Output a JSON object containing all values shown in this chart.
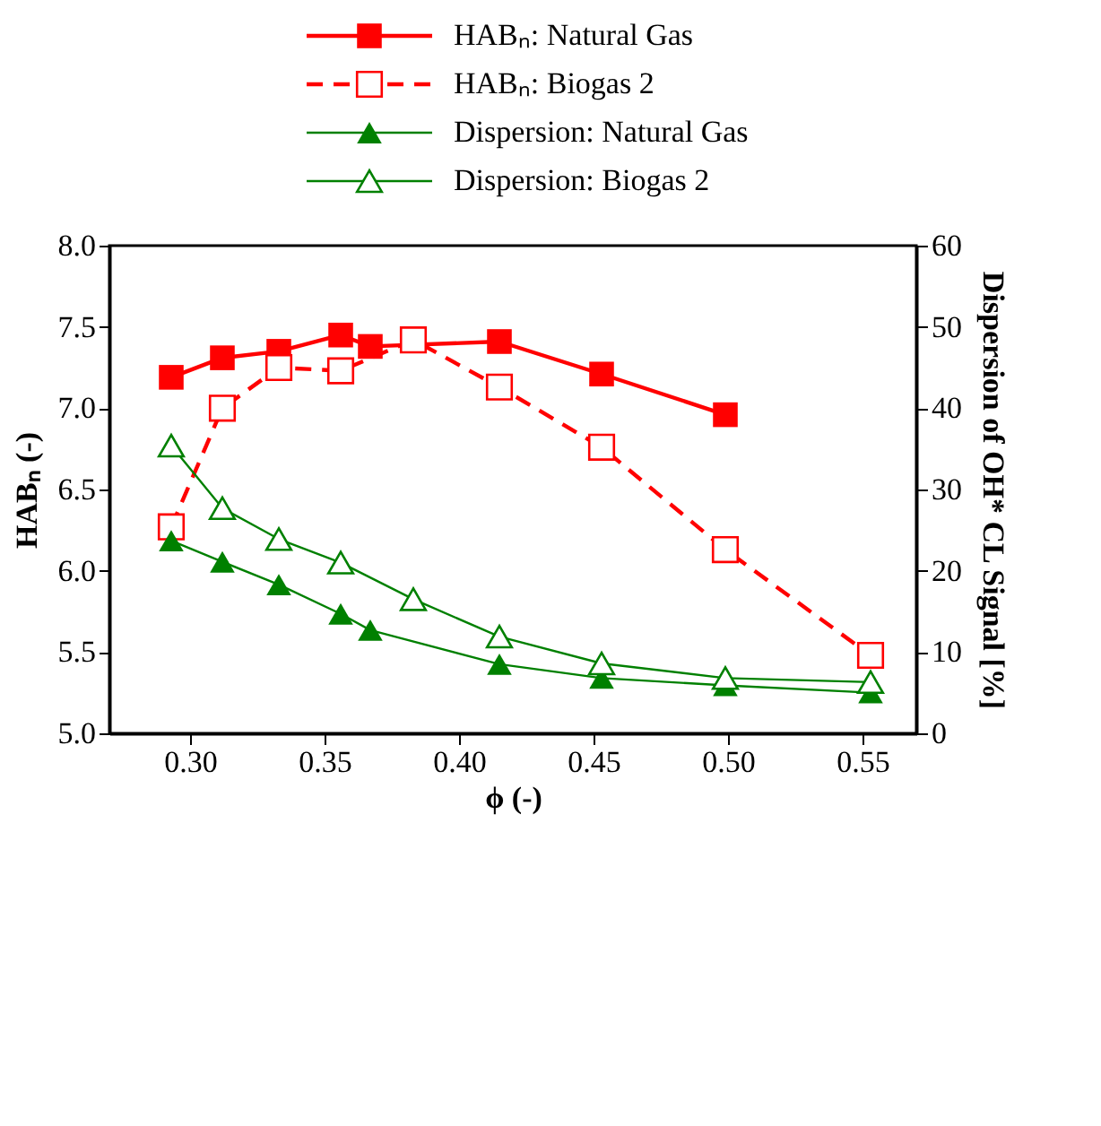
{
  "chart_data": {
    "type": "line",
    "xlabel": "ϕ (-)",
    "ylabel": "HABₙ (-)",
    "y2label": "Dispersion of OH* CL Signal [%]",
    "xlim": [
      0.27,
      0.57
    ],
    "xticks": [
      {
        "value": 0.3,
        "label": "0.30"
      },
      0.35,
      {
        "value": 0.4,
        "label": "0.40"
      },
      0.45,
      {
        "value": 0.5,
        "label": "0.50"
      },
      0.55
    ],
    "ylim": [
      5.0,
      8.0
    ],
    "yticks": [
      {
        "value": 5,
        "label": "5.0"
      },
      5.5,
      {
        "value": 6,
        "label": "6.0"
      },
      6.5,
      {
        "value": 7,
        "label": "7.0"
      },
      7.5,
      {
        "value": 8,
        "label": "8.0"
      }
    ],
    "y2lim": [
      0,
      60
    ],
    "y2ticks": [
      0,
      10,
      20,
      30,
      40,
      50,
      60
    ],
    "grid": false,
    "legend": "top",
    "series": [
      {
        "name": "HABₙ: Natural Gas",
        "color": "#ff0000",
        "marker": "square",
        "line_style": "solid",
        "x": [
          0.293,
          0.312,
          0.333,
          0.356,
          0.367,
          0.415,
          0.453,
          0.499
        ],
        "values": [
          7.19,
          7.31,
          7.35,
          7.45,
          7.38,
          7.41,
          7.21,
          6.96
        ]
      },
      {
        "name": "HABₙ: Biogas 2",
        "color": "#ff0000",
        "marker": "square",
        "line_style": "dashed",
        "x": [
          0.293,
          0.312,
          0.333,
          0.356,
          0.383,
          0.415,
          0.453,
          0.499,
          0.553
        ],
        "values": [
          6.27,
          7.0,
          7.25,
          7.23,
          7.42,
          7.13,
          6.76,
          6.13,
          5.48
        ]
      },
      {
        "name": "Dispersion: Natural Gas",
        "color": "#008000",
        "marker": "triangle",
        "line_style": "solid",
        "axis": "y2",
        "x": [
          0.293,
          0.312,
          0.333,
          0.356,
          0.367,
          0.415,
          0.453,
          0.499,
          0.553
        ],
        "values": [
          23.7,
          21.1,
          18.3,
          14.7,
          12.7,
          8.5,
          6.8,
          5.9,
          5.0
        ]
      },
      {
        "name": "Dispersion: Biogas 2",
        "color": "#008000",
        "marker": "triangle",
        "line_style": "solid",
        "axis": "y2",
        "x": [
          0.293,
          0.312,
          0.333,
          0.356,
          0.383,
          0.415,
          0.453,
          0.499,
          0.553
        ],
        "values": [
          35.4,
          27.7,
          23.9,
          21.0,
          16.5,
          11.9,
          8.6,
          6.8,
          6.3
        ]
      }
    ]
  }
}
